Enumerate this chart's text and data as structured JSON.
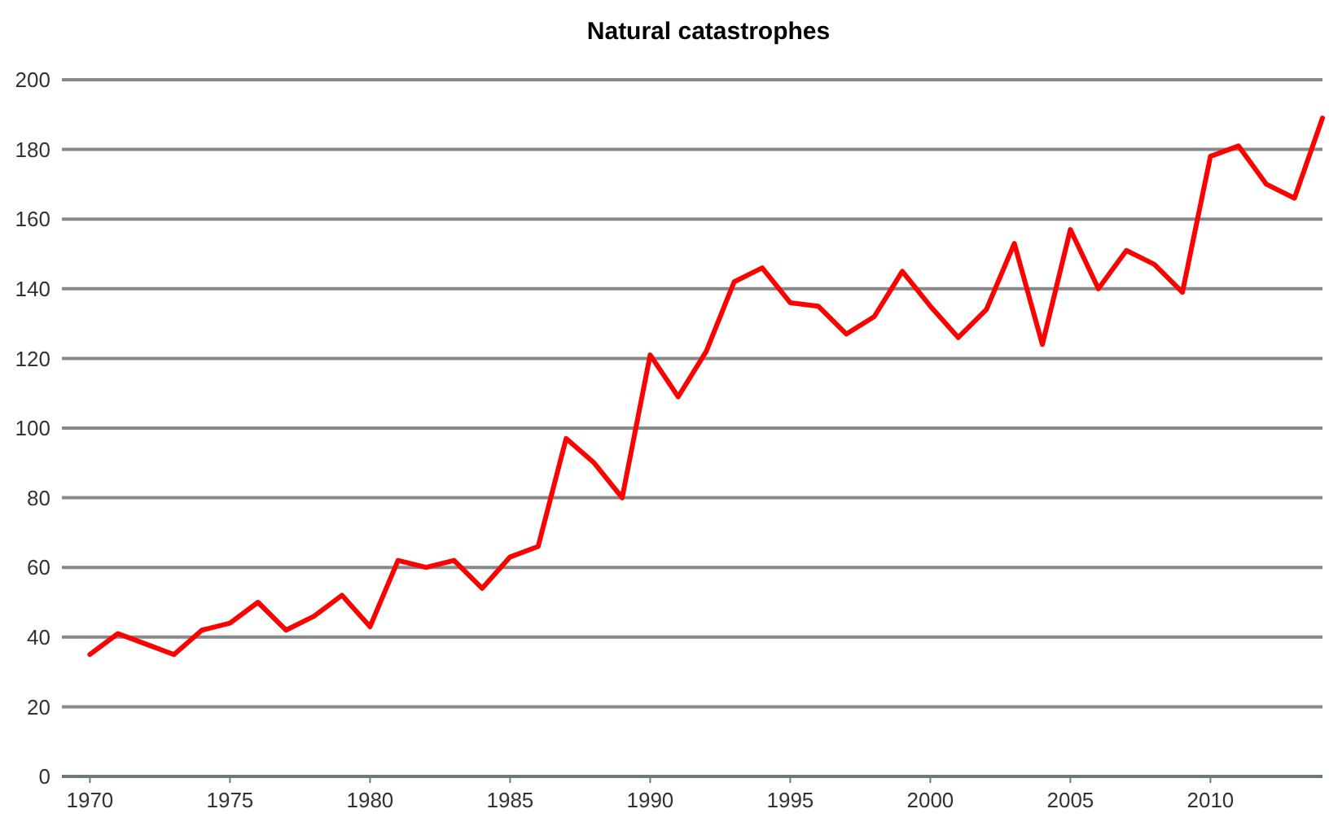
{
  "chart_data": {
    "type": "line",
    "title": "Natural catastrophes",
    "x": [
      1970,
      1971,
      1972,
      1973,
      1974,
      1975,
      1976,
      1977,
      1978,
      1979,
      1980,
      1981,
      1982,
      1983,
      1984,
      1985,
      1986,
      1987,
      1988,
      1989,
      1990,
      1991,
      1992,
      1993,
      1994,
      1995,
      1996,
      1997,
      1998,
      1999,
      2000,
      2001,
      2002,
      2003,
      2004,
      2005,
      2006,
      2007,
      2008,
      2009,
      2010,
      2011,
      2012,
      2013,
      2014
    ],
    "series": [
      {
        "color": "#ff0000",
        "values": [
          35,
          41,
          38,
          35,
          42,
          44,
          50,
          42,
          46,
          52,
          43,
          62,
          60,
          62,
          54,
          63,
          66,
          97,
          90,
          80,
          121,
          109,
          122,
          142,
          146,
          136,
          135,
          127,
          132,
          145,
          135,
          126,
          134,
          153,
          124,
          157,
          140,
          151,
          147,
          139,
          178,
          181,
          170,
          166,
          189
        ]
      }
    ],
    "xlim": [
      1969,
      2014
    ],
    "xticks": [
      1970,
      1975,
      1980,
      1985,
      1990,
      1995,
      2000,
      2005,
      2010
    ],
    "ylim": [
      0,
      200
    ],
    "yticks": [
      0,
      20,
      40,
      60,
      80,
      100,
      120,
      140,
      160,
      180,
      200
    ],
    "grid": "y",
    "marker": "none",
    "line_style": "solid"
  }
}
